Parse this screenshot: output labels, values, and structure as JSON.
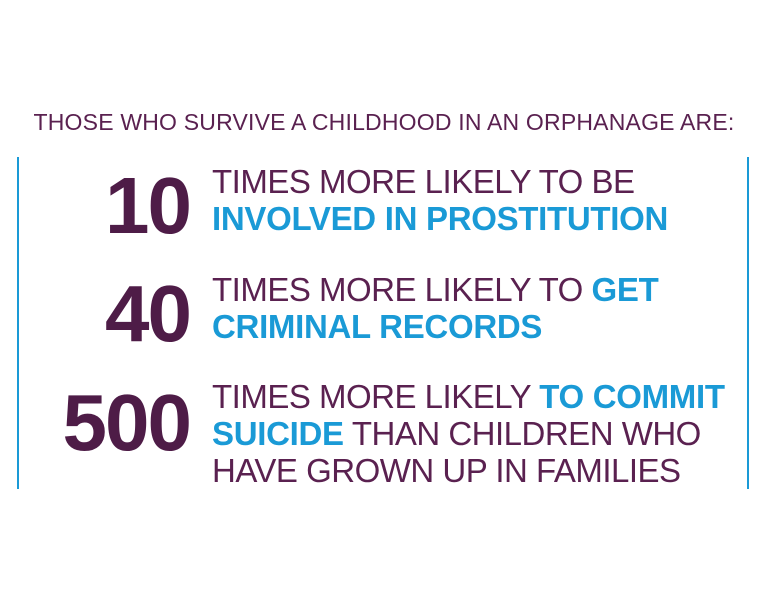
{
  "headline": "THOSE WHO SURVIVE A CHILDHOOD IN AN ORPHANAGE ARE:",
  "colors": {
    "purple": "#5a2150",
    "blue": "#1a9ad6"
  },
  "stats": [
    {
      "number": "10",
      "text_plain_1": "TIMES MORE LIKELY TO BE ",
      "text_highlight_1": "INVOLVED IN PROSTITUTION",
      "text_plain_2": ""
    },
    {
      "number": "40",
      "text_plain_1": "TIMES MORE LIKELY TO ",
      "text_highlight_1": "GET CRIMINAL RECORDS",
      "text_plain_2": ""
    },
    {
      "number": "500",
      "text_plain_1": "TIMES MORE LIKELY ",
      "text_highlight_1": "TO COMMIT SUICIDE",
      "text_plain_2": " THAN CHILDREN WHO HAVE GROWN UP IN FAMILIES"
    }
  ]
}
